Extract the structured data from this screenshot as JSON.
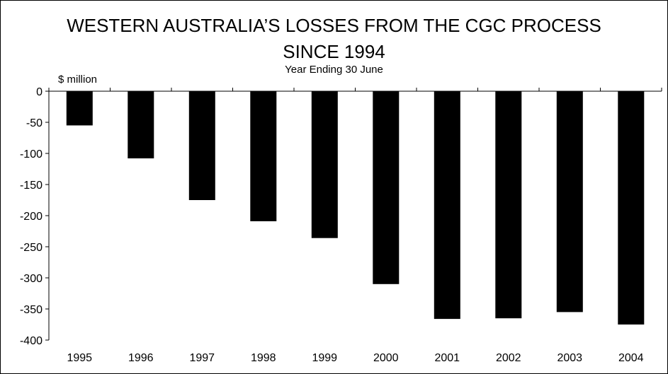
{
  "chart_data": {
    "type": "bar",
    "title_line1": "WESTERN AUSTRALIA’S LOSSES FROM THE CGC PROCESS",
    "title_line2": "SINCE 1994",
    "subtitle": "Year Ending 30 June",
    "ylabel": "$ million",
    "xlabel": "",
    "categories": [
      "1995",
      "1996",
      "1997",
      "1998",
      "1999",
      "2000",
      "2001",
      "2002",
      "2003",
      "2004"
    ],
    "values": [
      -55,
      -108,
      -175,
      -209,
      -236,
      -310,
      -366,
      -365,
      -355,
      -375
    ],
    "ylim": [
      -400,
      0
    ],
    "yticks": [
      0,
      -50,
      -100,
      -150,
      -200,
      -250,
      -300,
      -350,
      -400
    ],
    "grid": false,
    "bar_color": "#000000"
  }
}
